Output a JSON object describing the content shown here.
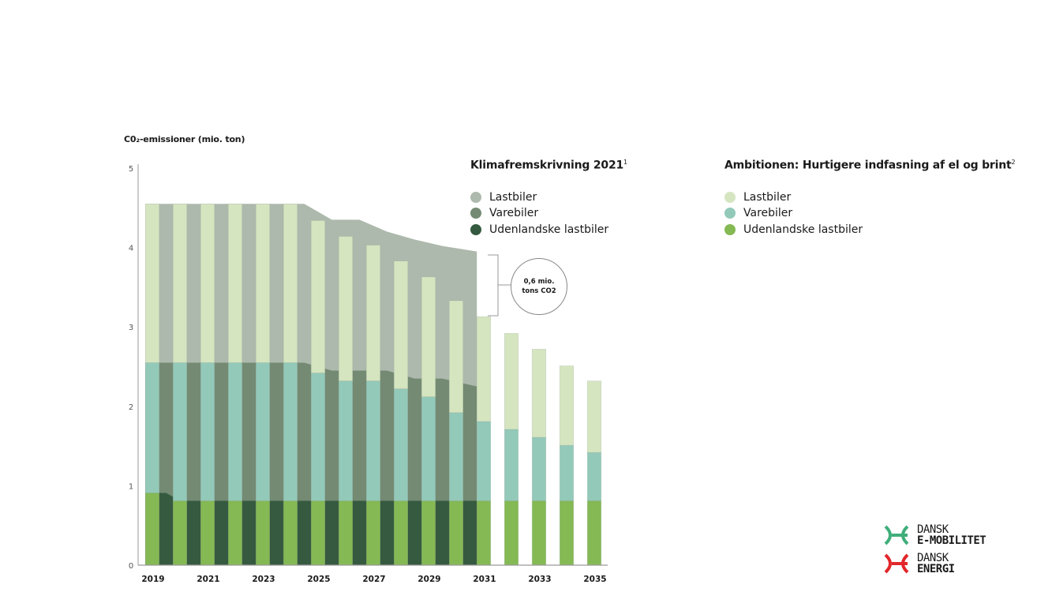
{
  "chart_data": {
    "type": "bar",
    "title": "",
    "ylabel": "C0₂-emissioner (mio. ton)",
    "xlabel": "",
    "ylim": [
      0,
      5
    ],
    "yticks": [
      0,
      1,
      2,
      3,
      4,
      5
    ],
    "categories": [
      "2019",
      "2020",
      "2021",
      "2022",
      "2023",
      "2024",
      "2025",
      "2026",
      "2027",
      "2028",
      "2029",
      "2030",
      "2031",
      "2032",
      "2033",
      "2034",
      "2035"
    ],
    "xtick_labels": [
      "2019",
      "2021",
      "2023",
      "2025",
      "2027",
      "2029",
      "2031",
      "2033",
      "2035"
    ],
    "stacked": true,
    "ambition": {
      "title": "Ambitionen: Hurtigere indfasning af el og brint",
      "footnote": "2",
      "series": [
        {
          "name": "Udenlandske lastbiler",
          "color": "#84b954",
          "values": [
            0.91,
            0.81,
            0.81,
            0.81,
            0.81,
            0.81,
            0.81,
            0.81,
            0.81,
            0.81,
            0.81,
            0.81,
            0.81,
            0.81,
            0.81,
            0.81,
            0.81
          ]
        },
        {
          "name": "Varebiler",
          "color": "#93c9b9",
          "values": [
            1.64,
            1.74,
            1.74,
            1.74,
            1.74,
            1.74,
            1.61,
            1.51,
            1.51,
            1.41,
            1.31,
            1.11,
            1.0,
            0.9,
            0.8,
            0.7,
            0.61
          ]
        },
        {
          "name": "Lastbiler",
          "color": "#d4e5c0",
          "values": [
            2.0,
            2.0,
            2.0,
            2.0,
            2.0,
            2.0,
            1.92,
            1.82,
            1.71,
            1.61,
            1.51,
            1.41,
            1.32,
            1.21,
            1.11,
            1.0,
            0.9
          ]
        }
      ]
    },
    "reference": {
      "title": "Klimafremskrivning 2021",
      "footnote": "1",
      "type": "area",
      "x": [
        2019,
        2019.5,
        2020,
        2020.5,
        2021,
        2022,
        2023,
        2024,
        2024.5,
        2025.5,
        2026.5,
        2027.5,
        2028.5,
        2029.5,
        2030.5
      ],
      "series": [
        {
          "name": "Udenlandske lastbiler",
          "color": "#355a3f",
          "values": [
            0.91,
            0.91,
            0.81,
            0.81,
            0.81,
            0.81,
            0.81,
            0.81,
            0.81,
            0.81,
            0.81,
            0.81,
            0.81,
            0.81,
            0.81
          ]
        },
        {
          "name": "Varebiler",
          "color": "#748a73",
          "values": [
            2.55,
            2.55,
            2.55,
            2.55,
            2.55,
            2.55,
            2.55,
            2.55,
            2.55,
            2.45,
            2.45,
            2.45,
            2.35,
            2.35,
            2.25
          ]
        },
        {
          "name": "Lastbiler",
          "color": "#adb9ac",
          "values": [
            4.55,
            4.55,
            4.55,
            4.55,
            4.55,
            4.55,
            4.55,
            4.55,
            4.55,
            4.35,
            4.35,
            4.2,
            4.1,
            4.02,
            3.95
          ]
        }
      ]
    },
    "annotation": {
      "line1": "0,6 mio.",
      "line2": "tons CO2"
    }
  },
  "legends": {
    "reference": {
      "title": "Klimafremskrivning 2021",
      "sup": "1",
      "items": [
        {
          "label": "Lastbiler",
          "color": "#adb9ac"
        },
        {
          "label": "Varebiler",
          "color": "#748a73"
        },
        {
          "label": "Udenlandske lastbiler",
          "color": "#355a3f"
        }
      ]
    },
    "ambition": {
      "title": "Ambitionen: Hurtigere indfasning af el og brint",
      "sup": "2",
      "items": [
        {
          "label": "Lastbiler",
          "color": "#d4e5c0"
        },
        {
          "label": "Varebiler",
          "color": "#93c9b9"
        },
        {
          "label": "Udenlandske lastbiler",
          "color": "#84b954"
        }
      ]
    }
  },
  "logos": {
    "emob": {
      "line1": "DANSK",
      "line2": "E-MOBILITET",
      "color": "#3fae7a"
    },
    "energi": {
      "line1": "DANSK",
      "line2": "ENERGI",
      "color": "#e2262a"
    }
  }
}
